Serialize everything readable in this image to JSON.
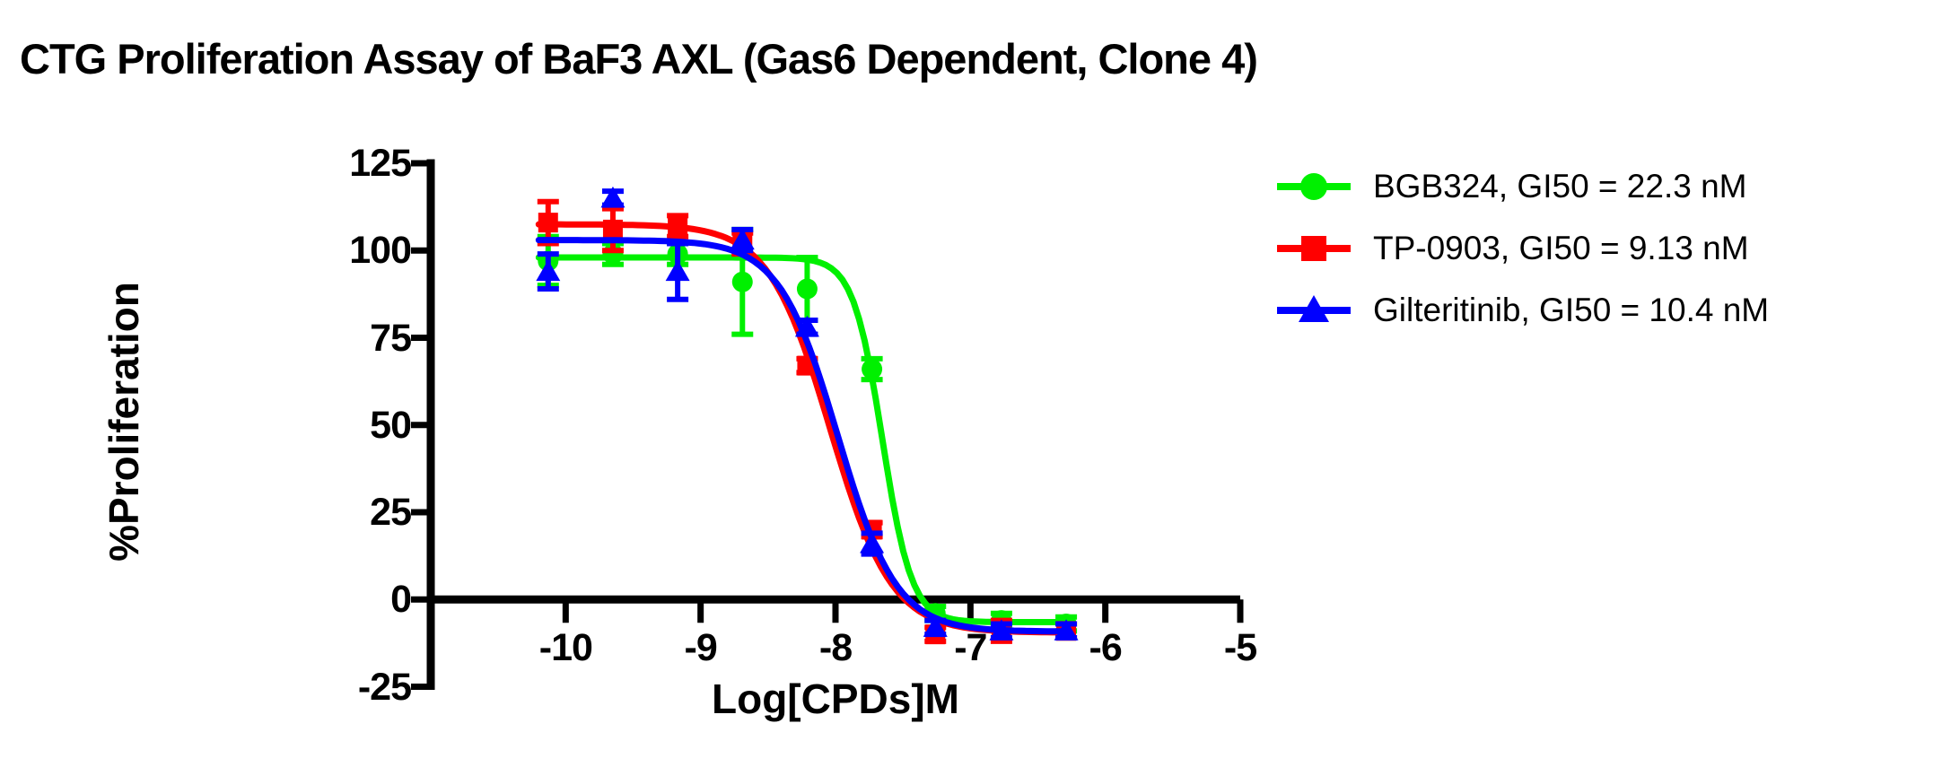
{
  "title": "CTG Proliferation Assay of BaF3 AXL (Gas6 Dependent, Clone 4)",
  "background_color": "#FFFFFF",
  "chart_data": {
    "type": "scatter",
    "subtype": "dose-response-curves-with-error-bars",
    "title": "CTG Proliferation Assay of BaF3 AXL (Gas6 Dependent, Clone 4)",
    "xlabel": "Log[CPDs]M",
    "ylabel": "%Proliferation",
    "xlim": [
      -11.0,
      -5
    ],
    "ylim": [
      -25,
      125
    ],
    "grid": false,
    "legend_position": "right-top",
    "axis_color": "#000000",
    "x_ticks": [
      {
        "value": -10,
        "label": "-10"
      },
      {
        "value": -9,
        "label": "-9"
      },
      {
        "value": -8,
        "label": "-8"
      },
      {
        "value": -7,
        "label": "-7"
      },
      {
        "value": -6,
        "label": "-6"
      },
      {
        "value": -5,
        "label": "-5"
      }
    ],
    "y_ticks": [
      {
        "value": 125,
        "label": "125"
      },
      {
        "value": 100,
        "label": "100"
      },
      {
        "value": 75,
        "label": "75"
      },
      {
        "value": 50,
        "label": "50"
      },
      {
        "value": 25,
        "label": "25"
      },
      {
        "value": 0,
        "label": "0"
      },
      {
        "value": -25,
        "label": "-25"
      }
    ],
    "series": [
      {
        "name": "BGB324",
        "gi50": "22.3 nM",
        "legend_label": "BGB324, GI50 = 22.3 nM",
        "color": "#00F000",
        "marker": "circle",
        "x": [
          -10.13,
          -9.65,
          -9.17,
          -8.69,
          -8.21,
          -7.73,
          -7.26,
          -6.77,
          -6.29
        ],
        "y": [
          97,
          99,
          99,
          91,
          89,
          66,
          -4,
          -6,
          -7
        ],
        "yerr": [
          7,
          3,
          3,
          15,
          9,
          3,
          2,
          2,
          2
        ],
        "fit": {
          "top": 98,
          "bottom": -6.5,
          "logIC50": -7.652,
          "hill": 4.0,
          "range": [
            -10.2,
            -6.27
          ]
        }
      },
      {
        "name": "TP-0903",
        "gi50": "9.13 nM",
        "legend_label": "TP-0903, GI50 = 9.13 nM",
        "color": "#FF0000",
        "marker": "square",
        "x": [
          -10.13,
          -9.65,
          -9.17,
          -8.69,
          -8.21,
          -7.73,
          -7.26,
          -6.77,
          -6.29
        ],
        "y": [
          108,
          106,
          107,
          102,
          67,
          20,
          -10,
          -9,
          -9
        ],
        "yerr": [
          6,
          6,
          3,
          3,
          2,
          2,
          2,
          3,
          2
        ],
        "fit": {
          "top": 107.5,
          "bottom": -9.5,
          "logIC50": -8.04,
          "hill": 1.9,
          "range": [
            -10.2,
            -6.27
          ]
        }
      },
      {
        "name": "Gilteritinib",
        "gi50": "10.4 nM",
        "legend_label": "Gilteritinib, GI50 = 10.4 nM",
        "color": "#0000FF",
        "marker": "triangle",
        "x": [
          -10.13,
          -9.65,
          -9.17,
          -8.69,
          -8.21,
          -7.73,
          -7.26,
          -6.77,
          -6.29
        ],
        "y": [
          94,
          115,
          94,
          103,
          78,
          16,
          -8,
          -9,
          -9
        ],
        "yerr": [
          5,
          2,
          8,
          3,
          2,
          3,
          2,
          2,
          2
        ],
        "fit": {
          "top": 103,
          "bottom": -9.2,
          "logIC50": -7.983,
          "hill": 2.0,
          "range": [
            -10.2,
            -6.27
          ]
        }
      }
    ]
  }
}
